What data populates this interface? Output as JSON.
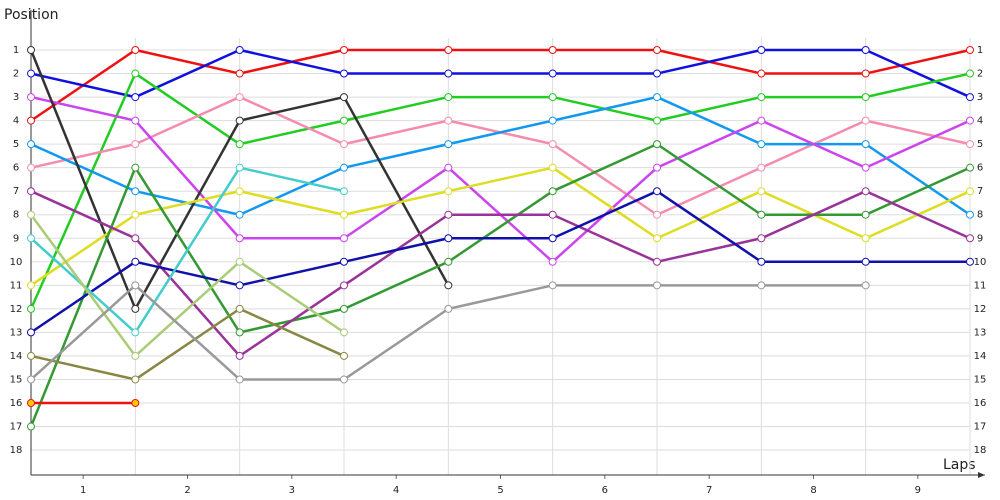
{
  "chart_data": {
    "type": "line",
    "y_axis_label": "Position",
    "x_axis_label": "Laps",
    "x": [
      0,
      1,
      2,
      3,
      4,
      5,
      6,
      7,
      8,
      9
    ],
    "xlim": [
      0,
      9
    ],
    "xticks": [
      {
        "value": 0.5,
        "label": "1"
      },
      {
        "value": 1.5,
        "label": "2"
      },
      {
        "value": 2.5,
        "label": "3"
      },
      {
        "value": 3.5,
        "label": "4"
      },
      {
        "value": 4.5,
        "label": "5"
      },
      {
        "value": 5.5,
        "label": "6"
      },
      {
        "value": 6.5,
        "label": "7"
      },
      {
        "value": 7.5,
        "label": "8"
      },
      {
        "value": 8.5,
        "label": "9"
      }
    ],
    "ylim": [
      -0.7,
      19.06
    ],
    "y_inverted": true,
    "yticks": [
      1,
      2,
      3,
      4,
      5,
      6,
      7,
      8,
      9,
      10,
      11,
      12,
      13,
      14,
      15,
      16,
      17,
      18
    ],
    "grid": true,
    "series": [
      {
        "color": "#ee1111",
        "values": [
          4,
          1,
          2,
          1,
          1,
          1,
          1,
          2,
          2,
          1
        ]
      },
      {
        "color": "#1111dd",
        "values": [
          2,
          3,
          1,
          2,
          2,
          2,
          2,
          1,
          1,
          3
        ]
      },
      {
        "color": "#22cc22",
        "values": [
          12,
          2,
          5,
          4,
          3,
          3,
          4,
          3,
          3,
          2
        ]
      },
      {
        "color": "#f58cb0",
        "values": [
          6,
          5,
          3,
          5,
          4,
          5,
          8,
          6,
          4,
          5
        ]
      },
      {
        "color": "#1199ee",
        "values": [
          5,
          7,
          8,
          6,
          5,
          4,
          3,
          5,
          5,
          8
        ]
      },
      {
        "color": "#cc44ee",
        "values": [
          3,
          4,
          9,
          9,
          6,
          10,
          6,
          4,
          6,
          4
        ]
      },
      {
        "color": "#333333",
        "values": [
          1,
          12,
          4,
          3,
          11,
          null,
          null,
          null,
          null,
          null
        ]
      },
      {
        "color": "#dddd22",
        "values": [
          11,
          8,
          7,
          8,
          7,
          6,
          9,
          7,
          9,
          7
        ]
      },
      {
        "color": "#339933",
        "values": [
          17,
          6,
          13,
          12,
          10,
          7,
          5,
          8,
          8,
          6
        ]
      },
      {
        "color": "#993399",
        "values": [
          7,
          9,
          14,
          11,
          8,
          8,
          10,
          9,
          7,
          9
        ]
      },
      {
        "color": "#1111aa",
        "values": [
          13,
          10,
          11,
          10,
          9,
          9,
          7,
          10,
          10,
          10
        ]
      },
      {
        "color": "#44cccc",
        "values": [
          9,
          13,
          6,
          7,
          null,
          null,
          null,
          null,
          null,
          null
        ]
      },
      {
        "color": "#aacc77",
        "values": [
          8,
          14,
          10,
          13,
          null,
          null,
          null,
          null,
          null,
          null
        ]
      },
      {
        "color": "#888844",
        "values": [
          14,
          15,
          12,
          14,
          null,
          null,
          null,
          null,
          null,
          null
        ]
      },
      {
        "color": "#999999",
        "values": [
          15,
          11,
          15,
          15,
          12,
          11,
          11,
          11,
          11,
          null
        ]
      },
      {
        "color": "#ee1111",
        "marker_color": "#ffcc00",
        "values": [
          16,
          16,
          null,
          null,
          null,
          null,
          null,
          null,
          null,
          null
        ]
      }
    ]
  }
}
